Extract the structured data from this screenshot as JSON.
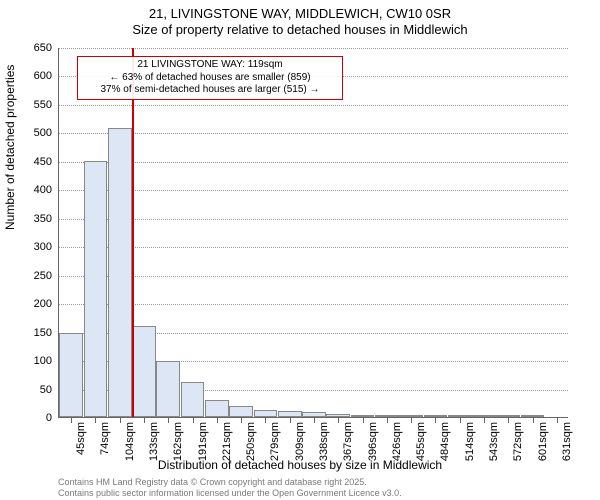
{
  "title_line1": "21, LIVINGSTONE WAY, MIDDLEWICH, CW10 0SR",
  "title_line2": "Size of property relative to detached houses in Middlewich",
  "y_axis_title": "Number of detached properties",
  "x_axis_title": "Distribution of detached houses by size in Middlewich",
  "footer_line1": "Contains HM Land Registry data © Crown copyright and database right 2025.",
  "footer_line2": "Contains public sector information licensed under the Open Government Licence v3.0.",
  "annotation": {
    "line1": "21 LIVINGSTONE WAY: 119sqm",
    "line2": "← 63% of detached houses are smaller (859)",
    "line3": "37% of semi-detached houses are larger (515) →"
  },
  "chart": {
    "type": "histogram",
    "ylim": [
      0,
      650
    ],
    "ytick_step": 50,
    "background_color": "#ffffff",
    "grid_color": "#999999",
    "bar_fill": "#dce6f5",
    "bar_border": "#888888",
    "marker_color": "#cc0000",
    "marker_x_value": 119,
    "x_categories": [
      "45sqm",
      "74sqm",
      "104sqm",
      "133sqm",
      "162sqm",
      "191sqm",
      "221sqm",
      "250sqm",
      "279sqm",
      "309sqm",
      "338sqm",
      "367sqm",
      "396sqm",
      "426sqm",
      "455sqm",
      "484sqm",
      "514sqm",
      "543sqm",
      "572sqm",
      "601sqm",
      "631sqm"
    ],
    "bar_values": [
      148,
      450,
      508,
      160,
      98,
      62,
      30,
      20,
      12,
      10,
      8,
      5,
      4,
      3,
      2,
      2,
      1,
      1,
      1,
      1,
      0
    ],
    "title_fontsize": 13,
    "label_fontsize": 11,
    "axis_title_fontsize": 12
  }
}
